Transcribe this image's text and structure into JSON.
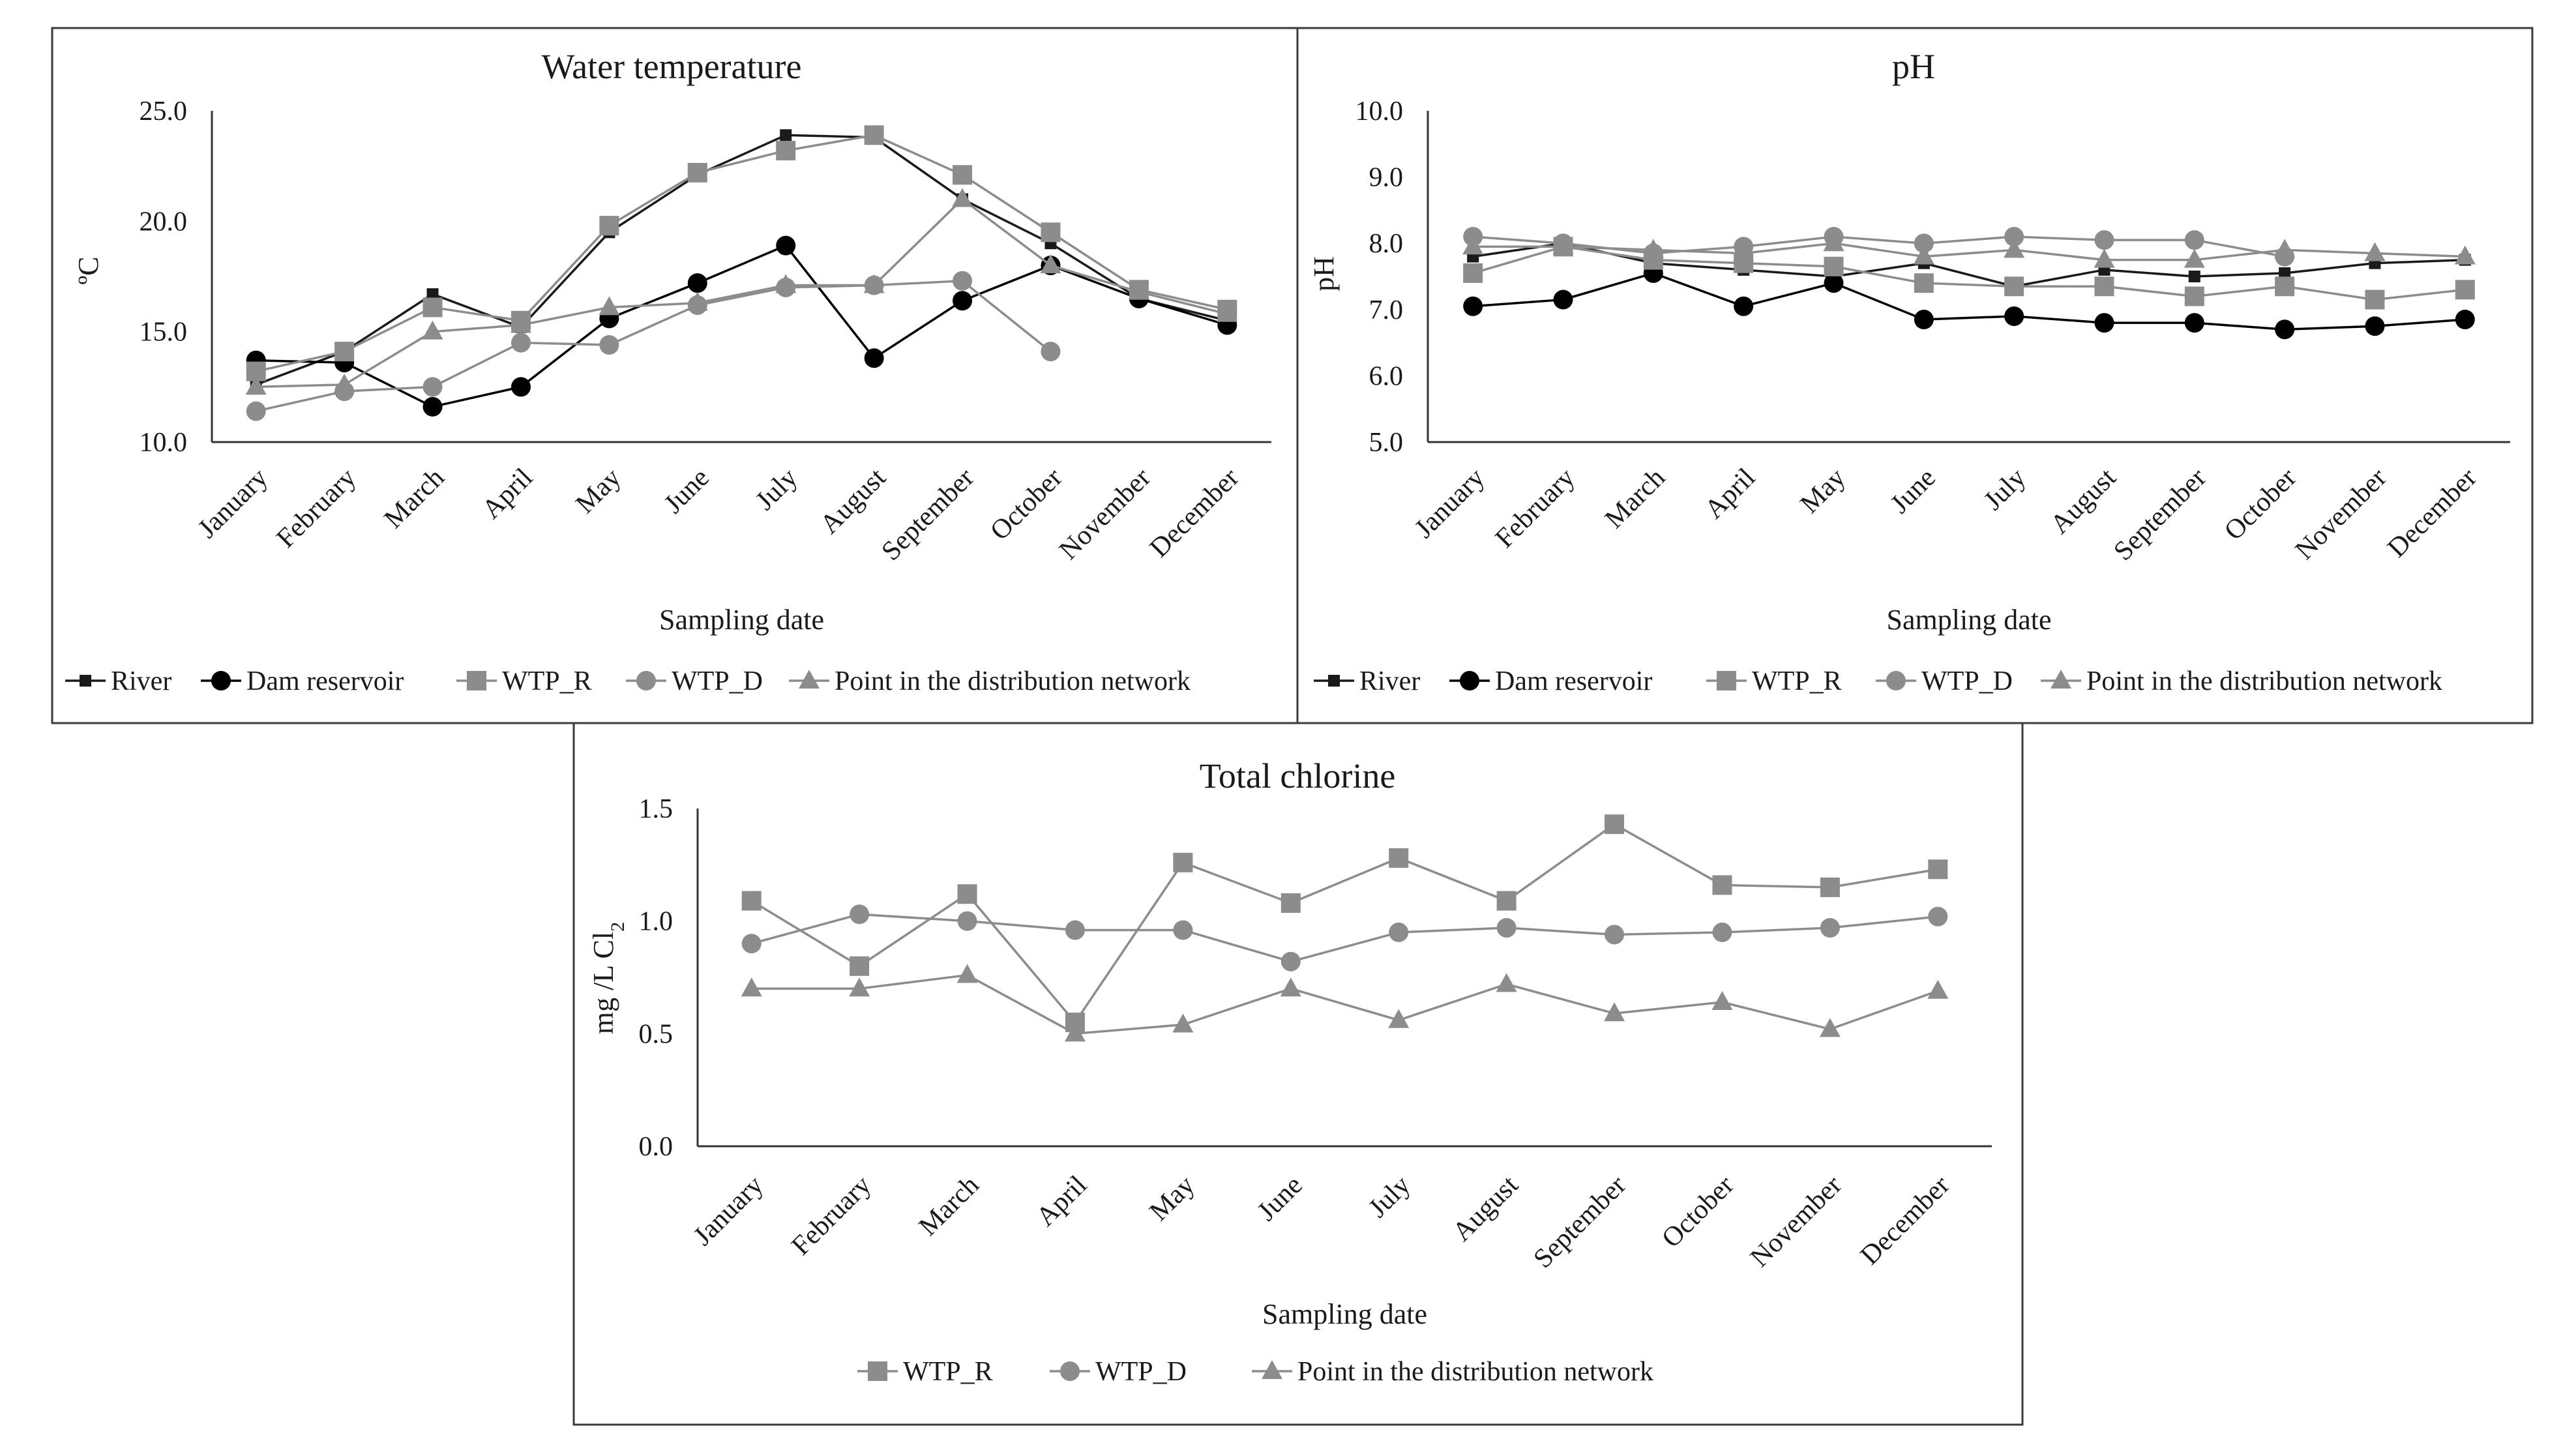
{
  "months": [
    "January",
    "February",
    "March",
    "April",
    "May",
    "June",
    "July",
    "August",
    "September",
    "October",
    "November",
    "December"
  ],
  "series_styles": {
    "River": {
      "color": "#1a1a1a",
      "marker": "square-small"
    },
    "Dam reservoir": {
      "color": "#000000",
      "marker": "circle"
    },
    "WTP_R": {
      "color": "#8c8c8c",
      "marker": "square"
    },
    "WTP_D": {
      "color": "#8c8c8c",
      "marker": "circle"
    },
    "Point in the distribution network": {
      "color": "#8c8c8c",
      "marker": "triangle"
    }
  },
  "chart_data": [
    {
      "type": "line",
      "title": "Water temperature",
      "xlabel": "Sampling date",
      "ylabel": "ºC",
      "ylim": [
        10.0,
        25.0
      ],
      "yticks": [
        "10.0",
        "15.0",
        "20.0",
        "25.0"
      ],
      "categories": [
        "January",
        "February",
        "March",
        "April",
        "May",
        "June",
        "July",
        "August",
        "September",
        "October",
        "November",
        "December"
      ],
      "legend": [
        "River",
        "Dam reservoir",
        "WTP_R",
        "WTP_D",
        "Point in the distribution network"
      ],
      "series": [
        {
          "name": "River",
          "values": [
            12.6,
            14.1,
            16.7,
            15.2,
            19.5,
            22.1,
            23.9,
            23.8,
            21.0,
            19.0,
            16.5,
            15.5
          ]
        },
        {
          "name": "Dam reservoir",
          "values": [
            13.7,
            13.6,
            11.6,
            12.5,
            15.6,
            17.2,
            18.9,
            13.8,
            16.4,
            18.0,
            16.5,
            15.3
          ]
        },
        {
          "name": "WTP_R",
          "values": [
            13.2,
            14.1,
            16.1,
            15.5,
            19.8,
            22.2,
            23.2,
            23.9,
            22.1,
            19.5,
            16.9,
            16.0
          ]
        },
        {
          "name": "WTP_D",
          "values": [
            11.4,
            12.3,
            12.5,
            14.5,
            14.4,
            16.2,
            17.0,
            17.1,
            17.3,
            14.1,
            null,
            null
          ]
        },
        {
          "name": "Point in the distribution network",
          "values": [
            12.5,
            12.6,
            15.0,
            15.3,
            16.1,
            16.3,
            17.1,
            17.1,
            21.0,
            18.0,
            16.8,
            15.8
          ]
        }
      ]
    },
    {
      "type": "line",
      "title": "pH",
      "xlabel": "Sampling date",
      "ylabel": "pH",
      "ylim": [
        5.0,
        10.0
      ],
      "yticks": [
        "5.0",
        "6.0",
        "7.0",
        "8.0",
        "9.0",
        "10.0"
      ],
      "categories": [
        "January",
        "February",
        "March",
        "April",
        "May",
        "June",
        "July",
        "August",
        "September",
        "October",
        "November",
        "December"
      ],
      "legend": [
        "River",
        "Dam reservoir",
        "WTP_R",
        "WTP_D",
        "Point in the distribution network"
      ],
      "series": [
        {
          "name": "River",
          "values": [
            7.8,
            8.0,
            7.7,
            7.6,
            7.5,
            7.7,
            7.35,
            7.6,
            7.5,
            7.55,
            7.7,
            7.75
          ]
        },
        {
          "name": "Dam reservoir",
          "values": [
            7.05,
            7.15,
            7.55,
            7.05,
            7.4,
            6.85,
            6.9,
            6.8,
            6.8,
            6.7,
            6.75,
            6.85
          ]
        },
        {
          "name": "WTP_R",
          "values": [
            7.55,
            7.95,
            7.75,
            7.7,
            7.65,
            7.4,
            7.35,
            7.35,
            7.2,
            7.35,
            7.15,
            7.3
          ]
        },
        {
          "name": "WTP_D",
          "values": [
            8.1,
            8.0,
            7.85,
            7.95,
            8.1,
            8.0,
            8.1,
            8.05,
            8.05,
            7.8,
            null,
            null
          ]
        },
        {
          "name": "Point in the distribution network",
          "values": [
            7.95,
            7.95,
            7.9,
            7.85,
            8.0,
            7.8,
            7.9,
            7.75,
            7.75,
            7.9,
            7.85,
            7.8
          ]
        }
      ]
    },
    {
      "type": "line",
      "title": "Total chlorine",
      "xlabel": "Sampling date",
      "ylabel_main": "mg /L Cl",
      "ylabel_sub": "2",
      "ylim": [
        0.0,
        1.5
      ],
      "yticks": [
        "0.0",
        "0.5",
        "1.0",
        "1.5"
      ],
      "categories": [
        "January",
        "February",
        "March",
        "April",
        "May",
        "June",
        "July",
        "August",
        "September",
        "October",
        "November",
        "December"
      ],
      "legend": [
        "WTP_R",
        "WTP_D",
        "Point in the distribution network"
      ],
      "series": [
        {
          "name": "WTP_R",
          "values": [
            1.09,
            0.8,
            1.12,
            0.55,
            1.26,
            1.08,
            1.28,
            1.09,
            1.43,
            1.16,
            1.15,
            1.23
          ]
        },
        {
          "name": "WTP_D",
          "values": [
            0.9,
            1.03,
            1.0,
            0.96,
            0.96,
            0.82,
            0.95,
            0.97,
            0.94,
            0.95,
            0.97,
            1.02
          ]
        },
        {
          "name": "Point in the distribution network",
          "values": [
            0.7,
            0.7,
            0.76,
            0.5,
            0.54,
            0.7,
            0.56,
            0.72,
            0.59,
            0.64,
            0.52,
            0.69
          ]
        }
      ]
    }
  ]
}
